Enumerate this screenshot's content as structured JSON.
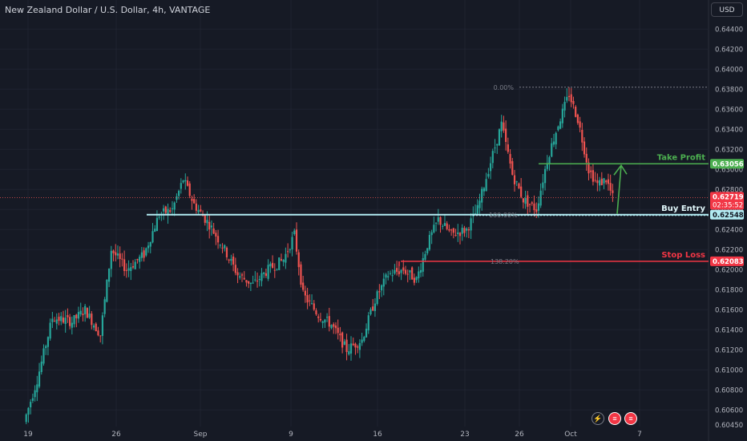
{
  "header": {
    "symbol_title": "New Zealand Dollar / U.S. Dollar, 4h, VANTAGE",
    "currency_button": "USD"
  },
  "annotations": {
    "take_profit": "Take Profit",
    "buy_entry": "Buy Entry",
    "stop_loss": "Stop Loss",
    "fib_0": "0.00%",
    "fib_100": "100.00%",
    "fib_138": "138.20%"
  },
  "price_badges": {
    "take_profit": "0.63056",
    "current": "0.62719",
    "countdown": "02:35:52",
    "buy_entry": "0.62548",
    "stop_loss": "0.62083"
  },
  "footer_icons": [
    "lightning-icon",
    "us-flag-icon",
    "us-flag-icon"
  ],
  "colors": {
    "background": "#161a25",
    "up": "#26a69a",
    "down": "#ef5350",
    "take_profit": "#4caf50",
    "buy_entry": "#b2ebf2",
    "stop_loss": "#f23645",
    "grid": "#1f2330"
  },
  "chart_data": {
    "type": "candlestick",
    "title": "New Zealand Dollar / U.S. Dollar, 4h, VANTAGE",
    "ylim": [
      0.6045,
      0.645
    ],
    "y_ticks": [
      "0.64400",
      "0.64200",
      "0.64000",
      "0.63800",
      "0.63600",
      "0.63400",
      "0.63200",
      "0.63000",
      "0.62800",
      "0.62600",
      "0.62400",
      "0.62200",
      "0.62000",
      "0.61800",
      "0.61600",
      "0.61400",
      "0.61200",
      "0.61000",
      "0.60800",
      "0.60600",
      "0.60450"
    ],
    "x_ticks": [
      "19",
      "26",
      "Sep",
      "9",
      "16",
      "23",
      "26",
      "Oct",
      "7"
    ],
    "levels": {
      "fib_0": 0.6382,
      "take_profit": 0.63056,
      "current_price": 0.62719,
      "buy_entry": 0.62548,
      "stop_loss": 0.62083
    },
    "waypoints": [
      [
        0,
        0.6048
      ],
      [
        6,
        0.609
      ],
      [
        13,
        0.6152
      ],
      [
        22,
        0.6148
      ],
      [
        28,
        0.616
      ],
      [
        35,
        0.6135
      ],
      [
        40,
        0.622
      ],
      [
        47,
        0.62
      ],
      [
        55,
        0.6215
      ],
      [
        62,
        0.6255
      ],
      [
        68,
        0.626
      ],
      [
        73,
        0.629
      ],
      [
        78,
        0.6265
      ],
      [
        85,
        0.6245
      ],
      [
        92,
        0.622
      ],
      [
        98,
        0.6195
      ],
      [
        105,
        0.6185
      ],
      [
        112,
        0.62
      ],
      [
        119,
        0.621
      ],
      [
        124,
        0.6235
      ],
      [
        128,
        0.6175
      ],
      [
        135,
        0.6155
      ],
      [
        141,
        0.6145
      ],
      [
        148,
        0.612
      ],
      [
        155,
        0.613
      ],
      [
        161,
        0.617
      ],
      [
        167,
        0.6195
      ],
      [
        174,
        0.62
      ],
      [
        180,
        0.619
      ],
      [
        185,
        0.6225
      ],
      [
        190,
        0.625
      ],
      [
        196,
        0.6235
      ],
      [
        203,
        0.624
      ],
      [
        208,
        0.626
      ],
      [
        213,
        0.63
      ],
      [
        219,
        0.6345
      ],
      [
        224,
        0.6295
      ],
      [
        229,
        0.627
      ],
      [
        235,
        0.626
      ],
      [
        240,
        0.631
      ],
      [
        245,
        0.6345
      ],
      [
        250,
        0.6375
      ],
      [
        254,
        0.635
      ],
      [
        259,
        0.63
      ],
      [
        263,
        0.6285
      ],
      [
        267,
        0.629
      ],
      [
        270,
        0.6272
      ]
    ]
  }
}
